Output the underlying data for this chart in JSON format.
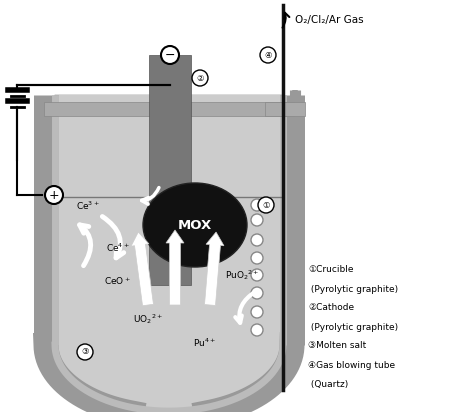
{
  "bg_color": "#ffffff",
  "crucible_outer_color": "#999999",
  "crucible_inner_color": "#bbbbbb",
  "molten_salt_color": "#cccccc",
  "cathode_color": "#777777",
  "mox_color": "#111111",
  "gas_label": "O₂/Cl₂/Ar Gas",
  "legend_lines": [
    "①Crucible",
    " (Pyrolytic graphite)",
    "②Cathode",
    " (Pyrolytic graphite)",
    "③Molten salt",
    "④Gas blowing tube",
    " (Quartz)"
  ]
}
